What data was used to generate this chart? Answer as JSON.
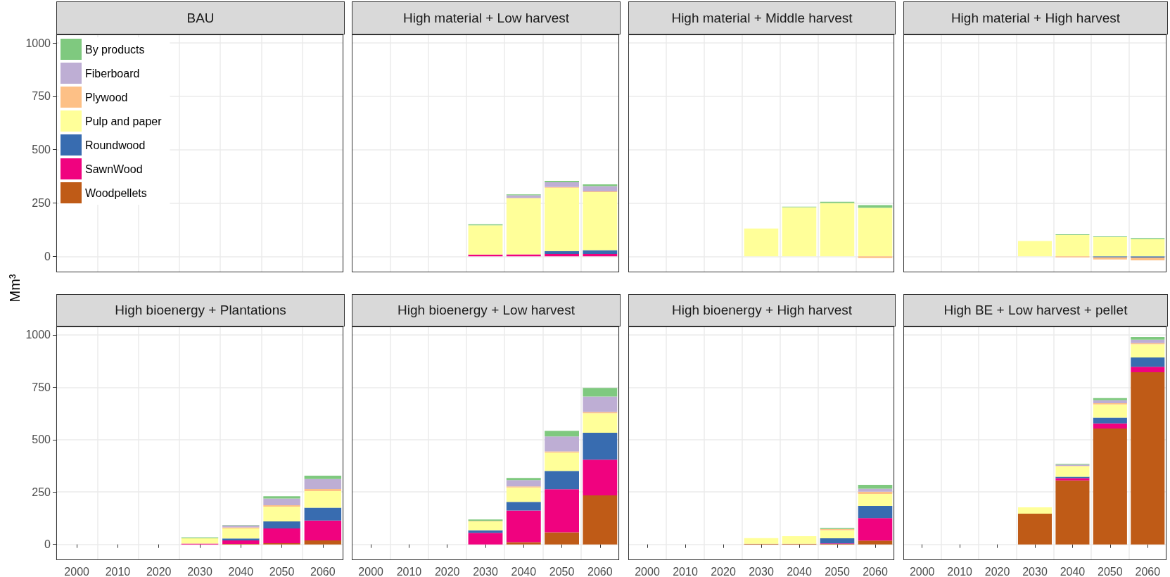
{
  "chart_data": [
    {
      "type": "bar",
      "title": "BAU",
      "ylabel": "Mm³",
      "categories": [
        "2000",
        "2010",
        "2020",
        "2030",
        "2040",
        "2050",
        "2060"
      ],
      "stacked": true,
      "ylim": [
        -75,
        1040
      ],
      "yticks": [
        0,
        250,
        500,
        750,
        1000
      ],
      "grid": true,
      "legend": "top left",
      "tick_labels": "y",
      "series": [
        {
          "name": "Woodpellets",
          "color": "#bf5b17",
          "values": [
            null,
            null,
            null,
            null,
            null,
            null,
            null
          ]
        },
        {
          "name": "SawnWood",
          "color": "#f0027f",
          "values": [
            null,
            null,
            null,
            null,
            null,
            null,
            null
          ]
        },
        {
          "name": "Roundwood",
          "color": "#386cb0",
          "values": [
            null,
            null,
            null,
            null,
            null,
            null,
            null
          ]
        },
        {
          "name": "Pulp and paper",
          "color": "#ffff99",
          "values": [
            null,
            null,
            null,
            null,
            null,
            null,
            null
          ]
        },
        {
          "name": "Plywood",
          "color": "#fdc086",
          "values": [
            null,
            null,
            null,
            null,
            null,
            null,
            null
          ]
        },
        {
          "name": "Fiberboard",
          "color": "#beaed4",
          "values": [
            null,
            null,
            null,
            null,
            null,
            null,
            null
          ]
        },
        {
          "name": "By products",
          "color": "#7fc97f",
          "values": [
            null,
            null,
            null,
            null,
            null,
            null,
            null
          ]
        }
      ]
    },
    {
      "type": "bar",
      "title": "High material + Low harvest",
      "categories": [
        "2000",
        "2010",
        "2020",
        "2030",
        "2040",
        "2050",
        "2060"
      ],
      "stacked": true,
      "ylim": [
        -75,
        1040
      ],
      "yticks": [
        0,
        250,
        500,
        750,
        1000
      ],
      "grid": true,
      "tick_labels": false,
      "series": [
        {
          "color": "#bf5b17",
          "values": [
            null,
            null,
            null,
            0,
            0,
            0,
            0
          ]
        },
        {
          "color": "#f0027f",
          "values": [
            null,
            null,
            null,
            8,
            9,
            11,
            11
          ]
        },
        {
          "color": "#386cb0",
          "values": [
            null,
            null,
            null,
            0,
            0,
            14,
            18
          ]
        },
        {
          "color": "#ffff99",
          "values": [
            null,
            null,
            null,
            137,
            263,
            297,
            272
          ]
        },
        {
          "color": "#fdc086",
          "values": [
            null,
            null,
            null,
            0,
            2,
            3,
            3
          ]
        },
        {
          "color": "#beaed4",
          "values": [
            null,
            null,
            null,
            0,
            12,
            22,
            25
          ]
        },
        {
          "color": "#7fc97f",
          "values": [
            null,
            null,
            null,
            5,
            4,
            7,
            8
          ]
        }
      ]
    },
    {
      "type": "bar",
      "title": "High material + Middle harvest",
      "categories": [
        "2000",
        "2010",
        "2020",
        "2030",
        "2040",
        "2050",
        "2060"
      ],
      "stacked": true,
      "ylim": [
        -75,
        1040
      ],
      "yticks": [
        0,
        250,
        500,
        750,
        1000
      ],
      "grid": true,
      "tick_labels": false,
      "series": [
        {
          "color": "#bf5b17",
          "values": [
            null,
            null,
            null,
            0,
            0,
            0,
            0
          ]
        },
        {
          "color": "#f0027f",
          "values": [
            null,
            null,
            null,
            0,
            0,
            0,
            0
          ]
        },
        {
          "color": "#386cb0",
          "values": [
            null,
            null,
            null,
            0,
            0,
            0,
            0
          ]
        },
        {
          "color": "#ffff99",
          "values": [
            null,
            null,
            null,
            130,
            230,
            250,
            228
          ]
        },
        {
          "color": "#fdc086",
          "values": [
            null,
            null,
            null,
            0,
            0,
            0,
            -8
          ]
        },
        {
          "color": "#beaed4",
          "values": [
            null,
            null,
            null,
            0,
            0,
            0,
            0
          ]
        },
        {
          "color": "#7fc97f",
          "values": [
            null,
            null,
            null,
            0,
            3,
            6,
            12
          ]
        }
      ]
    },
    {
      "type": "bar",
      "title": "High material + High harvest",
      "categories": [
        "2000",
        "2010",
        "2020",
        "2030",
        "2040",
        "2050",
        "2060"
      ],
      "stacked": true,
      "ylim": [
        -75,
        1040
      ],
      "yticks": [
        0,
        250,
        500,
        750,
        1000
      ],
      "grid": true,
      "tick_labels": false,
      "series": [
        {
          "color": "#bf5b17",
          "values": [
            null,
            null,
            null,
            0,
            0,
            0,
            0
          ]
        },
        {
          "color": "#f0027f",
          "values": [
            null,
            null,
            null,
            0,
            0,
            0,
            0
          ]
        },
        {
          "color": "#386cb0",
          "values": [
            null,
            null,
            null,
            0,
            0,
            -5,
            -6
          ]
        },
        {
          "color": "#ffff99",
          "values": [
            null,
            null,
            null,
            72,
            100,
            90,
            80
          ]
        },
        {
          "color": "#fdc086",
          "values": [
            null,
            null,
            null,
            0,
            -5,
            -10,
            -13
          ]
        },
        {
          "color": "#beaed4",
          "values": [
            null,
            null,
            null,
            0,
            0,
            0,
            0
          ]
        },
        {
          "color": "#7fc97f",
          "values": [
            null,
            null,
            null,
            0,
            3,
            3,
            5
          ]
        }
      ]
    },
    {
      "type": "bar",
      "title": "High bioenergy + Plantations",
      "categories": [
        "2000",
        "2010",
        "2020",
        "2030",
        "2040",
        "2050",
        "2060"
      ],
      "stacked": true,
      "ylim": [
        -75,
        1040
      ],
      "yticks": [
        0,
        250,
        500,
        750,
        1000
      ],
      "grid": true,
      "series": [
        {
          "color": "#bf5b17",
          "values": [
            null,
            null,
            null,
            0,
            2,
            6,
            19
          ]
        },
        {
          "color": "#f0027f",
          "values": [
            null,
            null,
            null,
            4,
            17,
            70,
            95
          ]
        },
        {
          "color": "#386cb0",
          "values": [
            null,
            null,
            null,
            null,
            9,
            34,
            61
          ]
        },
        {
          "color": "#ffff99",
          "values": [
            null,
            null,
            null,
            25,
            48,
            70,
            79
          ]
        },
        {
          "color": "#fdc086",
          "values": [
            null,
            null,
            null,
            0,
            5,
            7,
            10
          ]
        },
        {
          "color": "#beaed4",
          "values": [
            null,
            null,
            null,
            null,
            10,
            32,
            48
          ]
        },
        {
          "color": "#7fc97f",
          "values": [
            null,
            null,
            null,
            4,
            2,
            11,
            16
          ]
        }
      ]
    },
    {
      "type": "bar",
      "title": "High bioenergy + Low harvest",
      "categories": [
        "2000",
        "2010",
        "2020",
        "2030",
        "2040",
        "2050",
        "2060"
      ],
      "stacked": true,
      "ylim": [
        -75,
        1040
      ],
      "yticks": [
        0,
        250,
        500,
        750,
        1000
      ],
      "grid": true,
      "tick_labels": "x",
      "series": [
        {
          "color": "#bf5b17",
          "values": [
            null,
            null,
            null,
            0,
            11,
            58,
            234
          ]
        },
        {
          "color": "#f0027f",
          "values": [
            null,
            null,
            null,
            55,
            151,
            205,
            170
          ]
        },
        {
          "color": "#386cb0",
          "values": [
            null,
            null,
            null,
            13,
            41,
            88,
            129
          ]
        },
        {
          "color": "#ffff99",
          "values": [
            null,
            null,
            null,
            42,
            69,
            87,
            93
          ]
        },
        {
          "color": "#fdc086",
          "values": [
            null,
            null,
            null,
            2,
            5,
            6,
            6
          ]
        },
        {
          "color": "#beaed4",
          "values": [
            null,
            null,
            null,
            0,
            30,
            71,
            74
          ]
        },
        {
          "color": "#7fc97f",
          "values": [
            null,
            null,
            null,
            7,
            10,
            27,
            41
          ]
        }
      ]
    },
    {
      "type": "bar",
      "title": "High bioenergy + High harvest",
      "categories": [
        "2000",
        "2010",
        "2020",
        "2030",
        "2040",
        "2050",
        "2060"
      ],
      "stacked": true,
      "ylim": [
        -75,
        1040
      ],
      "yticks": [
        0,
        250,
        500,
        750,
        1000
      ],
      "grid": true,
      "tick_labels": "x",
      "series": [
        {
          "color": "#bf5b17",
          "values": [
            null,
            null,
            null,
            3,
            3,
            2,
            18
          ]
        },
        {
          "color": "#f0027f",
          "values": [
            null,
            null,
            null,
            0,
            0,
            3,
            108
          ]
        },
        {
          "color": "#386cb0",
          "values": [
            null,
            null,
            null,
            0,
            0,
            24,
            58
          ]
        },
        {
          "color": "#ffff99",
          "values": [
            null,
            null,
            null,
            27,
            36,
            39,
            57
          ]
        },
        {
          "color": "#fdc086",
          "values": [
            null,
            null,
            null,
            0,
            0,
            6,
            11
          ]
        },
        {
          "color": "#beaed4",
          "values": [
            null,
            null,
            null,
            0,
            0,
            null,
            14
          ]
        },
        {
          "color": "#7fc97f",
          "values": [
            null,
            null,
            null,
            0,
            0,
            5,
            18
          ]
        }
      ]
    },
    {
      "type": "bar",
      "title": "High BE + Low harvest + pellet",
      "categories": [
        "2000",
        "2010",
        "2020",
        "2030",
        "2040",
        "2050",
        "2060"
      ],
      "stacked": true,
      "ylim": [
        -75,
        1040
      ],
      "yticks": [
        0,
        250,
        500,
        750,
        1000
      ],
      "grid": true,
      "tick_labels": "x",
      "series": [
        {
          "color": "#bf5b17",
          "values": [
            null,
            null,
            null,
            147,
            305,
            553,
            822
          ]
        },
        {
          "color": "#f0027f",
          "values": [
            null,
            null,
            null,
            0,
            11,
            24,
            26
          ]
        },
        {
          "color": "#386cb0",
          "values": [
            null,
            null,
            null,
            0,
            7,
            28,
            44
          ]
        },
        {
          "color": "#ffff99",
          "values": [
            null,
            null,
            null,
            30,
            50,
            63,
            63
          ]
        },
        {
          "color": "#fdc086",
          "values": [
            null,
            null,
            null,
            0,
            2,
            6,
            6
          ]
        },
        {
          "color": "#beaed4",
          "values": [
            null,
            null,
            null,
            0,
            6,
            14,
            16
          ]
        },
        {
          "color": "#7fc97f",
          "values": [
            null,
            null,
            null,
            0,
            3,
            10,
            13
          ]
        }
      ]
    }
  ]
}
